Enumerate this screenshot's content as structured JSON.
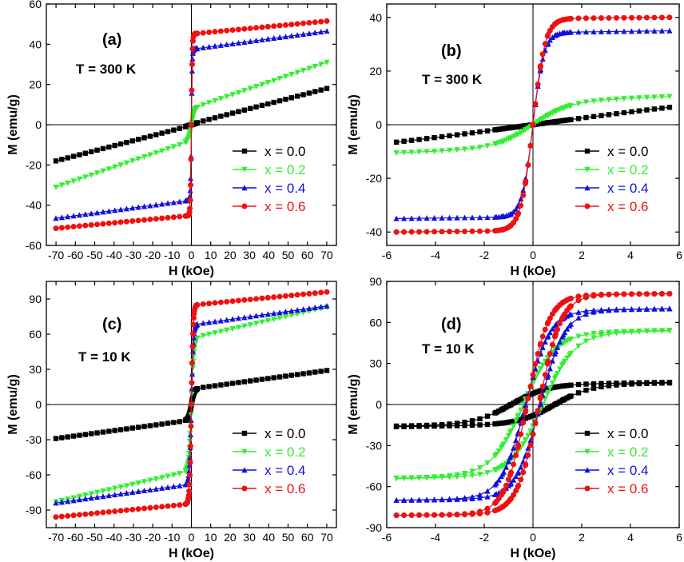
{
  "colors": {
    "x00": "#000000",
    "x02": "#33ee33",
    "x04": "#1111dd",
    "x06": "#ee1111"
  },
  "chart_data": [
    {
      "type": "line",
      "panel": "(a)",
      "annotation": "T = 300 K",
      "xlabel": "H (kOe)",
      "ylabel": "M  (emu/g)",
      "xlim": [
        -75,
        75
      ],
      "ylim": [
        -60,
        60
      ],
      "xticks": [
        -70,
        -60,
        -50,
        -40,
        -30,
        -20,
        -10,
        0,
        10,
        20,
        30,
        40,
        50,
        60,
        70
      ],
      "xtick_labels": [
        "-70",
        "-60",
        "-50",
        "-40",
        "-30",
        "-20",
        "-10",
        "0",
        "10",
        "20",
        "30",
        "40",
        "50",
        "60",
        "70"
      ],
      "yticks": [
        -60,
        -40,
        -20,
        0,
        20,
        40,
        60
      ],
      "ytick_labels": [
        "-60",
        "-40",
        "-20",
        "0",
        "20",
        "40",
        "60"
      ],
      "hysteresis": false,
      "legend": "bottom-right",
      "series": [
        {
          "name": "x = 0.0",
          "color_key": "x00",
          "marker": "square",
          "ms": 0.2,
          "hk": 5,
          "lin": 0.13,
          "hc": 0,
          "endpoint": 18
        },
        {
          "name": "x = 0.2",
          "color_key": "x02",
          "marker": "triangle-down",
          "ms": 8,
          "hk": 1.5,
          "lin": 0.33,
          "hc": 0,
          "endpoint": 31
        },
        {
          "name": "x = 0.4",
          "color_key": "x04",
          "marker": "triangle-up",
          "ms": 35,
          "hk": 0.45,
          "lin": 0.12,
          "hc": 0,
          "endpoint": 46.5
        },
        {
          "name": "x = 0.6",
          "color_key": "x06",
          "marker": "circle",
          "ms": 42,
          "hk": 0.5,
          "lin": 0.085,
          "hc": 0,
          "endpoint": 51.5
        }
      ]
    },
    {
      "type": "line",
      "panel": "(b)",
      "annotation": "T = 300 K",
      "xlabel": "H (kOe)",
      "ylabel": "M  (emu/g)",
      "xlim": [
        -6,
        6
      ],
      "ylim": [
        -45,
        45
      ],
      "xticks": [
        -6,
        -4,
        -2,
        0,
        2,
        4,
        6
      ],
      "xtick_labels": [
        "-6",
        "-4",
        "-2",
        "0",
        "2",
        "4",
        "6"
      ],
      "yticks": [
        -40,
        -20,
        0,
        20,
        40
      ],
      "ytick_labels": [
        "-40",
        "-20",
        "0",
        "20",
        "40"
      ],
      "hysteresis": false,
      "legend": "bottom-right",
      "series": [
        {
          "name": "x = 0.0",
          "color_key": "x00",
          "marker": "square",
          "ms": 0.2,
          "hk": 5,
          "lin": 0.13,
          "hc": 0,
          "endpoint": 6.5
        },
        {
          "name": "x = 0.2",
          "color_key": "x02",
          "marker": "triangle-down",
          "ms": 8,
          "hk": 1.5,
          "lin": 0.33,
          "hc": 0,
          "endpoint": 10.5
        },
        {
          "name": "x = 0.4",
          "color_key": "x04",
          "marker": "triangle-up",
          "ms": 35,
          "hk": 0.45,
          "lin": 0.12,
          "hc": 0,
          "endpoint": 35
        },
        {
          "name": "x = 0.6",
          "color_key": "x06",
          "marker": "circle",
          "ms": 42,
          "hk": 0.5,
          "lin": 0.085,
          "hc": 0,
          "endpoint": 40
        }
      ]
    },
    {
      "type": "line",
      "panel": "(c)",
      "annotation": "T = 10 K",
      "xlabel": "H (kOe)",
      "ylabel": "M  (emu/g)",
      "xlim": [
        -75,
        75
      ],
      "ylim": [
        -105,
        105
      ],
      "xticks": [
        -70,
        -60,
        -50,
        -40,
        -30,
        -20,
        -10,
        0,
        10,
        20,
        30,
        40,
        50,
        60,
        70
      ],
      "xtick_labels": [
        "-70",
        "-60",
        "-50",
        "-40",
        "-30",
        "-20",
        "-10",
        "0",
        "10",
        "20",
        "30",
        "40",
        "50",
        "60",
        "70"
      ],
      "yticks": [
        -90,
        -60,
        -30,
        0,
        30,
        60,
        90
      ],
      "ytick_labels": [
        "-90",
        "-60",
        "-30",
        "0",
        "30",
        "60",
        "90"
      ],
      "hysteresis": false,
      "legend": "bottom-right",
      "series": [
        {
          "name": "x = 0.0",
          "color_key": "x00",
          "marker": "square",
          "ms": 13,
          "hk": 1.5,
          "lin": 0.22,
          "hc": 0,
          "endpoint": 29
        },
        {
          "name": "x = 0.2",
          "color_key": "x02",
          "marker": "triangle-down",
          "ms": 57,
          "hk": 1.3,
          "lin": 0.38,
          "hc": 0,
          "endpoint": 83
        },
        {
          "name": "x = 0.4",
          "color_key": "x04",
          "marker": "triangle-up",
          "ms": 68,
          "hk": 1.0,
          "lin": 0.23,
          "hc": 0,
          "endpoint": 84
        },
        {
          "name": "x = 0.6",
          "color_key": "x06",
          "marker": "circle",
          "ms": 84,
          "hk": 0.9,
          "lin": 0.16,
          "hc": 0,
          "endpoint": 96
        }
      ]
    },
    {
      "type": "line",
      "panel": "(d)",
      "annotation": "T = 10 K",
      "xlabel": "H (kOe)",
      "ylabel": "M  (emu/g)",
      "xlim": [
        -6,
        6
      ],
      "ylim": [
        -90,
        90
      ],
      "xticks": [
        -6,
        -4,
        -2,
        0,
        2,
        4,
        6
      ],
      "xtick_labels": [
        "-6",
        "-4",
        "-2",
        "0",
        "2",
        "4",
        "6"
      ],
      "yticks": [
        -90,
        -60,
        -30,
        0,
        30,
        60,
        90
      ],
      "ytick_labels": [
        "-90",
        "-60",
        "-30",
        "0",
        "30",
        "60",
        "90"
      ],
      "hysteresis": true,
      "legend": "bottom-right",
      "series": [
        {
          "name": "x = 0.0",
          "color_key": "x00",
          "marker": "square",
          "ms": 13,
          "hk": 1.5,
          "lin": 0.22,
          "hc": 0.9,
          "endpoint": 16
        },
        {
          "name": "x = 0.2",
          "color_key": "x02",
          "marker": "triangle-down",
          "ms": 57,
          "hk": 1.3,
          "lin": 0.38,
          "hc": 0.4,
          "endpoint": 54
        },
        {
          "name": "x = 0.4",
          "color_key": "x04",
          "marker": "triangle-up",
          "ms": 68,
          "hk": 1.0,
          "lin": 0.23,
          "hc": 0.3,
          "endpoint": 70
        },
        {
          "name": "x = 0.6",
          "color_key": "x06",
          "marker": "circle",
          "ms": 84,
          "hk": 0.9,
          "lin": 0.16,
          "hc": 0.25,
          "endpoint": 81
        }
      ]
    }
  ]
}
